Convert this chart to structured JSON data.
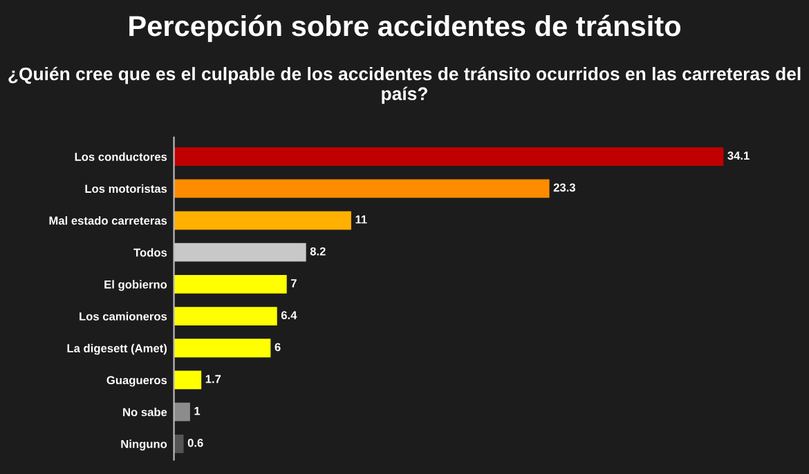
{
  "chart_data": {
    "type": "bar",
    "orientation": "horizontal",
    "title": "Percepción sobre accidentes de tránsito",
    "subtitle": "¿Quién cree que es el culpable de los accidentes de tránsito ocurridos en las carreteras del país?",
    "categories": [
      "Los conductores",
      "Los motoristas",
      "Mal estado carreteras",
      "Todos",
      "El gobierno",
      "Los camioneros",
      "La digesett (Amet)",
      "Guagueros",
      "No sabe",
      "Ninguno"
    ],
    "values": [
      34.1,
      23.3,
      11,
      8.2,
      7,
      6.4,
      6,
      1.7,
      1,
      0.6
    ],
    "colors": [
      "#c00000",
      "#ff8c00",
      "#ffb000",
      "#c8c8c8",
      "#ffff00",
      "#ffff00",
      "#ffff00",
      "#ffff00",
      "#8c8c8c",
      "#555555"
    ],
    "data_labels": true,
    "grid": false,
    "legend": false
  }
}
